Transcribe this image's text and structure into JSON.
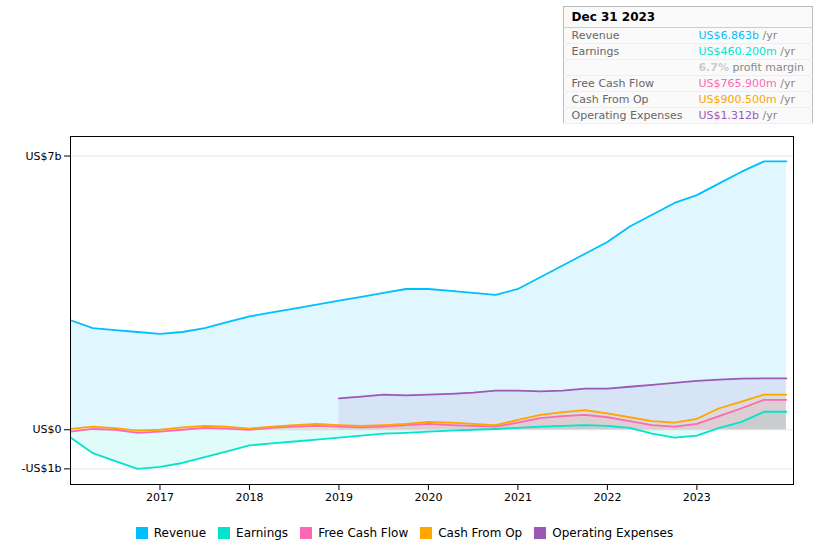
{
  "chart_data": {
    "type": "area",
    "x": [
      2016.0,
      2016.25,
      2016.5,
      2016.75,
      2017.0,
      2017.25,
      2017.5,
      2017.75,
      2018.0,
      2018.25,
      2018.5,
      2018.75,
      2019.0,
      2019.25,
      2019.5,
      2019.75,
      2020.0,
      2020.25,
      2020.5,
      2020.75,
      2021.0,
      2021.25,
      2021.5,
      2021.75,
      2022.0,
      2022.25,
      2022.5,
      2022.75,
      2023.0,
      2023.25,
      2023.5,
      2023.75,
      2024.0
    ],
    "series": [
      {
        "name": "Revenue",
        "color": "#00bfff",
        "values": [
          2.8,
          2.6,
          2.55,
          2.5,
          2.45,
          2.5,
          2.6,
          2.75,
          2.9,
          3.0,
          3.1,
          3.2,
          3.3,
          3.4,
          3.5,
          3.6,
          3.6,
          3.55,
          3.5,
          3.45,
          3.6,
          3.9,
          4.2,
          4.5,
          4.8,
          5.2,
          5.5,
          5.8,
          6.0,
          6.3,
          6.6,
          6.863,
          6.863
        ]
      },
      {
        "name": "Earnings",
        "color": "#00e5cc",
        "values": [
          -0.2,
          -0.6,
          -0.8,
          -1.0,
          -0.95,
          -0.85,
          -0.7,
          -0.55,
          -0.4,
          -0.35,
          -0.3,
          -0.25,
          -0.2,
          -0.15,
          -0.1,
          -0.08,
          -0.05,
          -0.02,
          0.0,
          0.02,
          0.05,
          0.08,
          0.1,
          0.12,
          0.1,
          0.05,
          -0.1,
          -0.2,
          -0.15,
          0.05,
          0.2,
          0.46,
          0.46
        ]
      },
      {
        "name": "Free Cash Flow",
        "color": "#ff69b4",
        "values": [
          -0.05,
          0.02,
          0.0,
          -0.08,
          -0.05,
          0.0,
          0.05,
          0.03,
          0.0,
          0.05,
          0.08,
          0.1,
          0.08,
          0.06,
          0.08,
          0.12,
          0.15,
          0.12,
          0.1,
          0.08,
          0.18,
          0.3,
          0.35,
          0.38,
          0.32,
          0.22,
          0.12,
          0.08,
          0.15,
          0.35,
          0.55,
          0.766,
          0.766
        ]
      },
      {
        "name": "Cash From Op",
        "color": "#ffa500",
        "values": [
          0.02,
          0.08,
          0.04,
          -0.02,
          0.0,
          0.06,
          0.1,
          0.08,
          0.03,
          0.08,
          0.12,
          0.15,
          0.12,
          0.1,
          0.12,
          0.15,
          0.2,
          0.18,
          0.15,
          0.12,
          0.25,
          0.38,
          0.45,
          0.5,
          0.42,
          0.32,
          0.22,
          0.18,
          0.28,
          0.55,
          0.72,
          0.9005,
          0.9005
        ]
      },
      {
        "name": "Operating Expenses",
        "color": "#9b59b6",
        "values": [
          null,
          null,
          null,
          null,
          null,
          null,
          null,
          null,
          null,
          null,
          null,
          null,
          0.8,
          0.85,
          0.9,
          0.88,
          0.9,
          0.92,
          0.95,
          1.0,
          1.0,
          0.98,
          1.0,
          1.05,
          1.05,
          1.1,
          1.15,
          1.2,
          1.25,
          1.28,
          1.31,
          1.312,
          1.312
        ]
      }
    ],
    "xlim": [
      2016,
      2024.08
    ],
    "xticks": [
      2017,
      2018,
      2019,
      2020,
      2021,
      2022,
      2023
    ],
    "ylim": [
      -1.4,
      7.5
    ],
    "yticks": [
      {
        "value": -1.0,
        "label": "-US$1b"
      },
      {
        "value": 0.0,
        "label": "US$0"
      },
      {
        "value": 7.0,
        "label": "US$7b"
      }
    ],
    "grid": true,
    "legend": "bottom",
    "annotations": [
      {
        "title": "Dec 31 2023",
        "rows": [
          {
            "label": "Revenue",
            "value": "US$6.863b",
            "suffix": " /yr",
            "color": "#00bfff"
          },
          {
            "label": "Earnings",
            "value": "US$460.200m",
            "suffix": " /yr",
            "color": "#00e5cc"
          },
          {
            "value": "6.7%",
            "suffix": " profit margin",
            "color": "#cccccc"
          },
          {
            "label": "Free Cash Flow",
            "value": "US$765.900m",
            "suffix": " /yr",
            "color": "#ff69b4"
          },
          {
            "label": "Cash From Op",
            "value": "US$900.500m",
            "suffix": " /yr",
            "color": "#ffa500"
          },
          {
            "label": "Operating Expenses",
            "value": "US$1.312b",
            "suffix": " /yr",
            "color": "#9b59b6"
          }
        ]
      }
    ]
  }
}
